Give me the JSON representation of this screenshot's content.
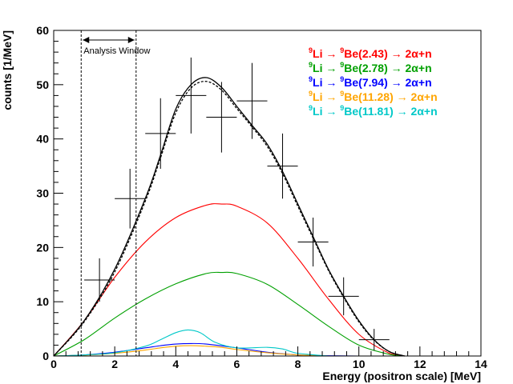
{
  "chart_data": {
    "type": "line",
    "title": "",
    "xlabel": "Energy (positron scale) [MeV]",
    "ylabel": "counts [1/MeV]",
    "xlim": [
      0,
      14
    ],
    "ylim": [
      0,
      60
    ],
    "x_major_ticks": [
      0,
      2,
      4,
      6,
      8,
      10,
      12,
      14
    ],
    "x_tick_labels": [
      "0",
      "2",
      "4",
      "6",
      "8",
      "10",
      "12",
      "14"
    ],
    "y_major_ticks": [
      0,
      10,
      20,
      30,
      40,
      50,
      60
    ],
    "y_tick_labels": [
      "0",
      "10",
      "20",
      "30",
      "40",
      "50",
      "60"
    ],
    "legend_position": "top-right",
    "grid": false,
    "annotation": {
      "text": "Analysis Window",
      "window": [
        0.9,
        2.7
      ]
    },
    "data_points": [
      {
        "x": 1.5,
        "y": 14,
        "xerr": 0.5,
        "yerr_low": 4,
        "yerr_high": 4
      },
      {
        "x": 2.5,
        "y": 29,
        "xerr": 0.5,
        "yerr_low": 5.5,
        "yerr_high": 5.5
      },
      {
        "x": 3.5,
        "y": 41,
        "xerr": 0.5,
        "yerr_low": 6.5,
        "yerr_high": 6.5
      },
      {
        "x": 4.5,
        "y": 48,
        "xerr": 0.5,
        "yerr_low": 7,
        "yerr_high": 7
      },
      {
        "x": 5.5,
        "y": 44,
        "xerr": 0.5,
        "yerr_low": 6.5,
        "yerr_high": 6.5
      },
      {
        "x": 6.5,
        "y": 47,
        "xerr": 0.5,
        "yerr_low": 7,
        "yerr_high": 7
      },
      {
        "x": 7.5,
        "y": 35,
        "xerr": 0.5,
        "yerr_low": 6,
        "yerr_high": 6
      },
      {
        "x": 8.5,
        "y": 21,
        "xerr": 0.5,
        "yerr_low": 4.5,
        "yerr_high": 4.5
      },
      {
        "x": 9.5,
        "y": 11,
        "xerr": 0.5,
        "yerr_low": 3.5,
        "yerr_high": 3.5
      },
      {
        "x": 10.5,
        "y": 3,
        "xerr": 0.5,
        "yerr_low": 2,
        "yerr_high": 2
      }
    ],
    "series": [
      {
        "color": "#ff0000",
        "style": "solid",
        "x": [
          0,
          1,
          2,
          3,
          4,
          5,
          5.5,
          6,
          7,
          8,
          9,
          10,
          11,
          11.5
        ],
        "y": [
          0,
          6.5,
          14.5,
          21,
          25.5,
          27.8,
          28,
          27.6,
          24.5,
          18,
          10.5,
          4,
          0.5,
          0
        ]
      },
      {
        "color": "#00a000",
        "style": "solid",
        "x": [
          0,
          1,
          2,
          3,
          4,
          5,
          5.5,
          6,
          7,
          8,
          9,
          10,
          11,
          11.5
        ],
        "y": [
          0,
          3,
          7,
          10.5,
          13.3,
          15.2,
          15.4,
          15.2,
          13.2,
          9.5,
          5.5,
          2,
          0.3,
          0
        ]
      },
      {
        "color": "#0000ff",
        "style": "solid",
        "x": [
          0,
          1,
          2,
          3,
          3.5,
          4,
          4.5,
          5,
          6,
          7,
          8,
          9,
          10
        ],
        "y": [
          0,
          0.2,
          0.7,
          1.5,
          1.9,
          2.2,
          2.3,
          2.2,
          1.5,
          0.7,
          0.2,
          0.05,
          0
        ]
      },
      {
        "color": "#ffa500",
        "style": "solid",
        "x": [
          0,
          1,
          2,
          3,
          3.5,
          4,
          4.5,
          5,
          5.5,
          6,
          7,
          8,
          9
        ],
        "y": [
          0,
          0.15,
          0.5,
          1.1,
          1.5,
          1.8,
          1.9,
          1.8,
          1.6,
          1.2,
          0.6,
          0.2,
          0
        ]
      },
      {
        "color": "#00c8c8",
        "style": "solid",
        "x": [
          0,
          1,
          2,
          3,
          3.5,
          4,
          4.4,
          4.8,
          5.3,
          6,
          7,
          7.5,
          8,
          9
        ],
        "y": [
          0,
          0.2,
          0.6,
          1.8,
          3,
          4.3,
          4.8,
          4.3,
          2.5,
          1.5,
          1.6,
          1.3,
          0.5,
          0
        ]
      },
      {
        "color": "#000000",
        "style": "solid",
        "x": [
          0,
          1,
          2,
          3,
          3.5,
          4,
          4.5,
          5,
          5.5,
          6,
          6.5,
          7,
          7.5,
          8,
          8.5,
          9,
          9.5,
          10,
          10.5,
          11,
          11.5
        ],
        "y": [
          0,
          6.5,
          16,
          29,
          37,
          45.5,
          50,
          51.3,
          49.5,
          46,
          42.5,
          39,
          34,
          28,
          22,
          16,
          11,
          6.5,
          3,
          0.8,
          0
        ]
      },
      {
        "color": "#000000",
        "style": "dashed",
        "x": [
          0,
          1,
          2,
          3,
          3.5,
          4,
          4.5,
          5,
          5.5,
          6,
          6.5,
          7,
          7.5,
          8,
          8.5,
          9,
          9.5,
          10,
          10.5,
          11,
          11.5
        ],
        "y": [
          0,
          6.3,
          15.5,
          28.5,
          36.5,
          44.8,
          49.4,
          50.6,
          49,
          45.6,
          42.2,
          38.6,
          33.6,
          27.6,
          21.7,
          15.8,
          10.8,
          6.3,
          2.9,
          0.8,
          0
        ]
      }
    ],
    "legend": [
      {
        "color": "#ff0000",
        "parent_sup": "9",
        "parent": "Li",
        "arrow1": "→",
        "daughter_sup": "9",
        "daughter": "Be(2.43)",
        "arrow2": "→",
        "products": "2α+n"
      },
      {
        "color": "#00a000",
        "parent_sup": "9",
        "parent": "Li",
        "arrow1": "→",
        "daughter_sup": "9",
        "daughter": "Be(2.78)",
        "arrow2": "→",
        "products": "2α+n"
      },
      {
        "color": "#0000ff",
        "parent_sup": "9",
        "parent": "Li",
        "arrow1": "→",
        "daughter_sup": "9",
        "daughter": "Be(7.94)",
        "arrow2": "→",
        "products": "2α+n"
      },
      {
        "color": "#ffa500",
        "parent_sup": "9",
        "parent": "Li",
        "arrow1": "→",
        "daughter_sup": "9",
        "daughter": "Be(11.28)",
        "arrow2": "→",
        "products": "2α+n"
      },
      {
        "color": "#00c8c8",
        "parent_sup": "9",
        "parent": "Li",
        "arrow1": "→",
        "daughter_sup": "9",
        "daughter": "Be(11.81)",
        "arrow2": "→",
        "products": "2α+n"
      }
    ]
  }
}
